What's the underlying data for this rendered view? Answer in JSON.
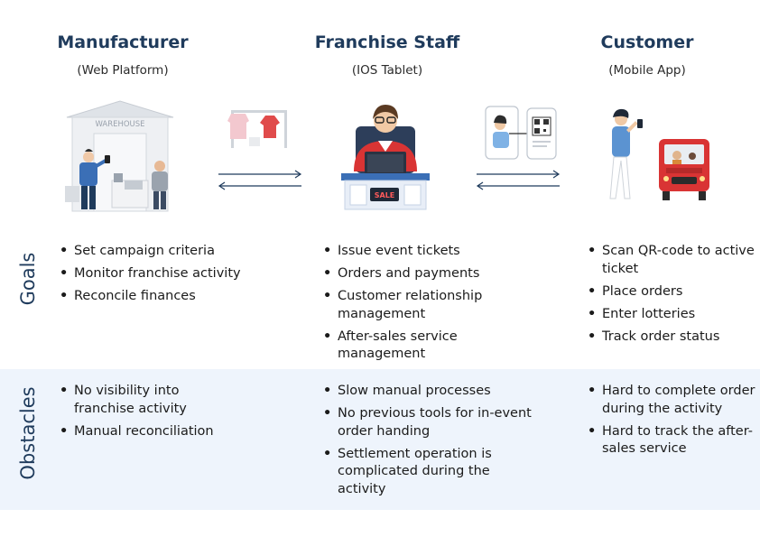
{
  "columns": [
    {
      "title": "Manufacturer",
      "subtitle": "(Web Platform)",
      "illustration_sign": "WAREHOUSE",
      "goals": [
        "Set campaign criteria",
        "Monitor franchise activity",
        "Reconcile finances"
      ],
      "obstacles": [
        "No visibility into franchise activity",
        "Manual reconciliation"
      ]
    },
    {
      "title": "Franchise Staff",
      "subtitle": "(IOS Tablet)",
      "illustration_sign": "SALE",
      "goals": [
        "Issue event tickets",
        "Orders and payments",
        "Customer relationship management",
        "After-sales service management"
      ],
      "obstacles": [
        "Slow manual processes",
        "No previous tools for in-event order handing",
        "Settlement operation is complicated during the activity"
      ]
    },
    {
      "title": "Customer",
      "subtitle": "(Mobile App)",
      "goals": [
        "Scan QR-code to active ticket",
        "Place orders",
        "Enter lotteries",
        "Track order status"
      ],
      "obstacles": [
        "Hard to complete order during the activity",
        "Hard to track the after-sales service"
      ]
    }
  ],
  "rows": {
    "goals_label": "Goals",
    "obstacles_label": "Obstacles"
  },
  "colors": {
    "heading": "#1f3b5c",
    "obstacles_band": "#eef4fc",
    "accent_red": "#d93434",
    "accent_blue": "#3b6fb6"
  }
}
